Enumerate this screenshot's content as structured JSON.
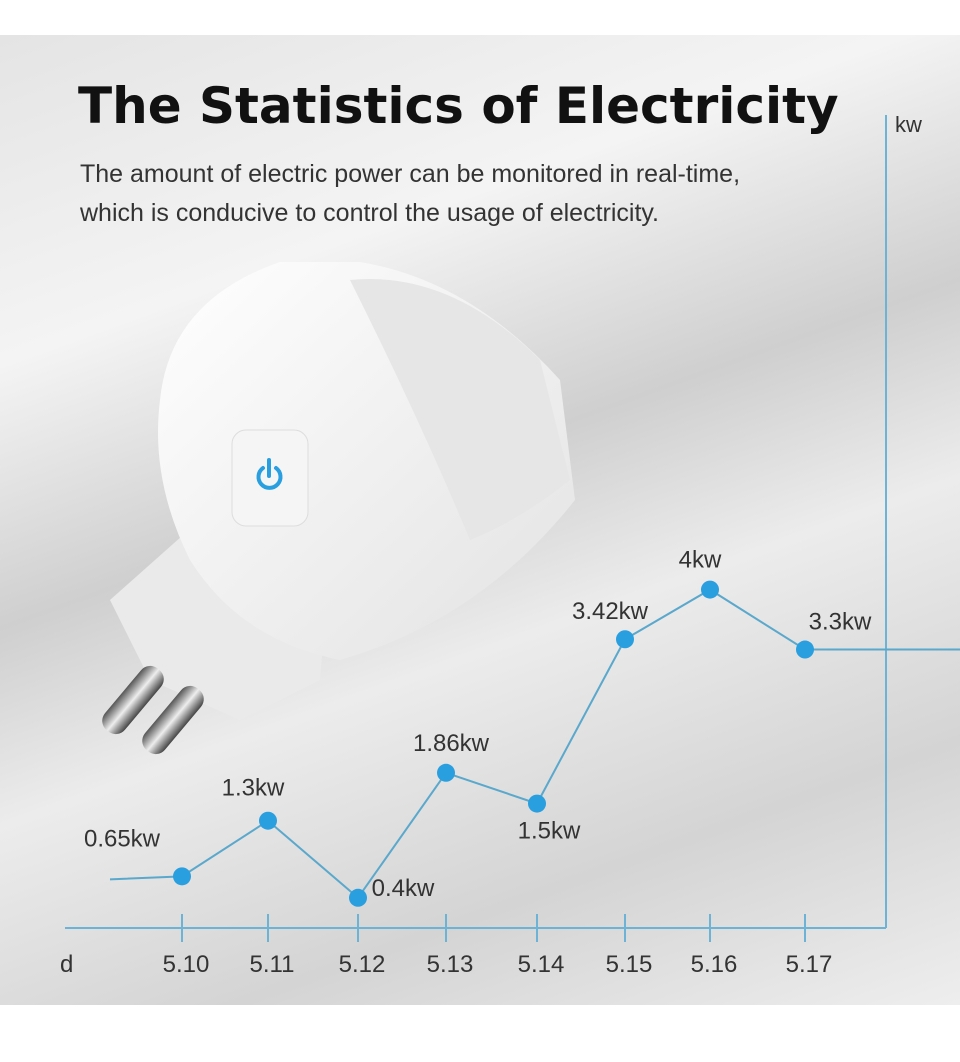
{
  "header": {
    "title": "The Statistics of Electricity",
    "subtitle_line1": "The amount of electric power can be monitored in real-time,",
    "subtitle_line2": "which is conducive to control the usage of electricity."
  },
  "product": {
    "icon": "power-button-icon",
    "accent": "#2a9fe0"
  },
  "chart_data": {
    "type": "line",
    "title": "",
    "xlabel": "d",
    "ylabel": "kw",
    "categories": [
      "5.10",
      "5.11",
      "5.12",
      "5.13",
      "5.14",
      "5.15",
      "5.16",
      "5.17"
    ],
    "values": [
      0.65,
      1.3,
      0.4,
      1.86,
      1.5,
      3.42,
      4,
      3.3
    ],
    "data_labels": [
      "0.65kw",
      "1.3kw",
      "0.4kw",
      "1.86kw",
      "1.5kw",
      "3.42kw",
      "4kw",
      "3.3kw"
    ],
    "grid": false,
    "colors": {
      "point": "#2a9fe0",
      "line": "#5aa8cc",
      "axis": "#6db3d6"
    }
  }
}
